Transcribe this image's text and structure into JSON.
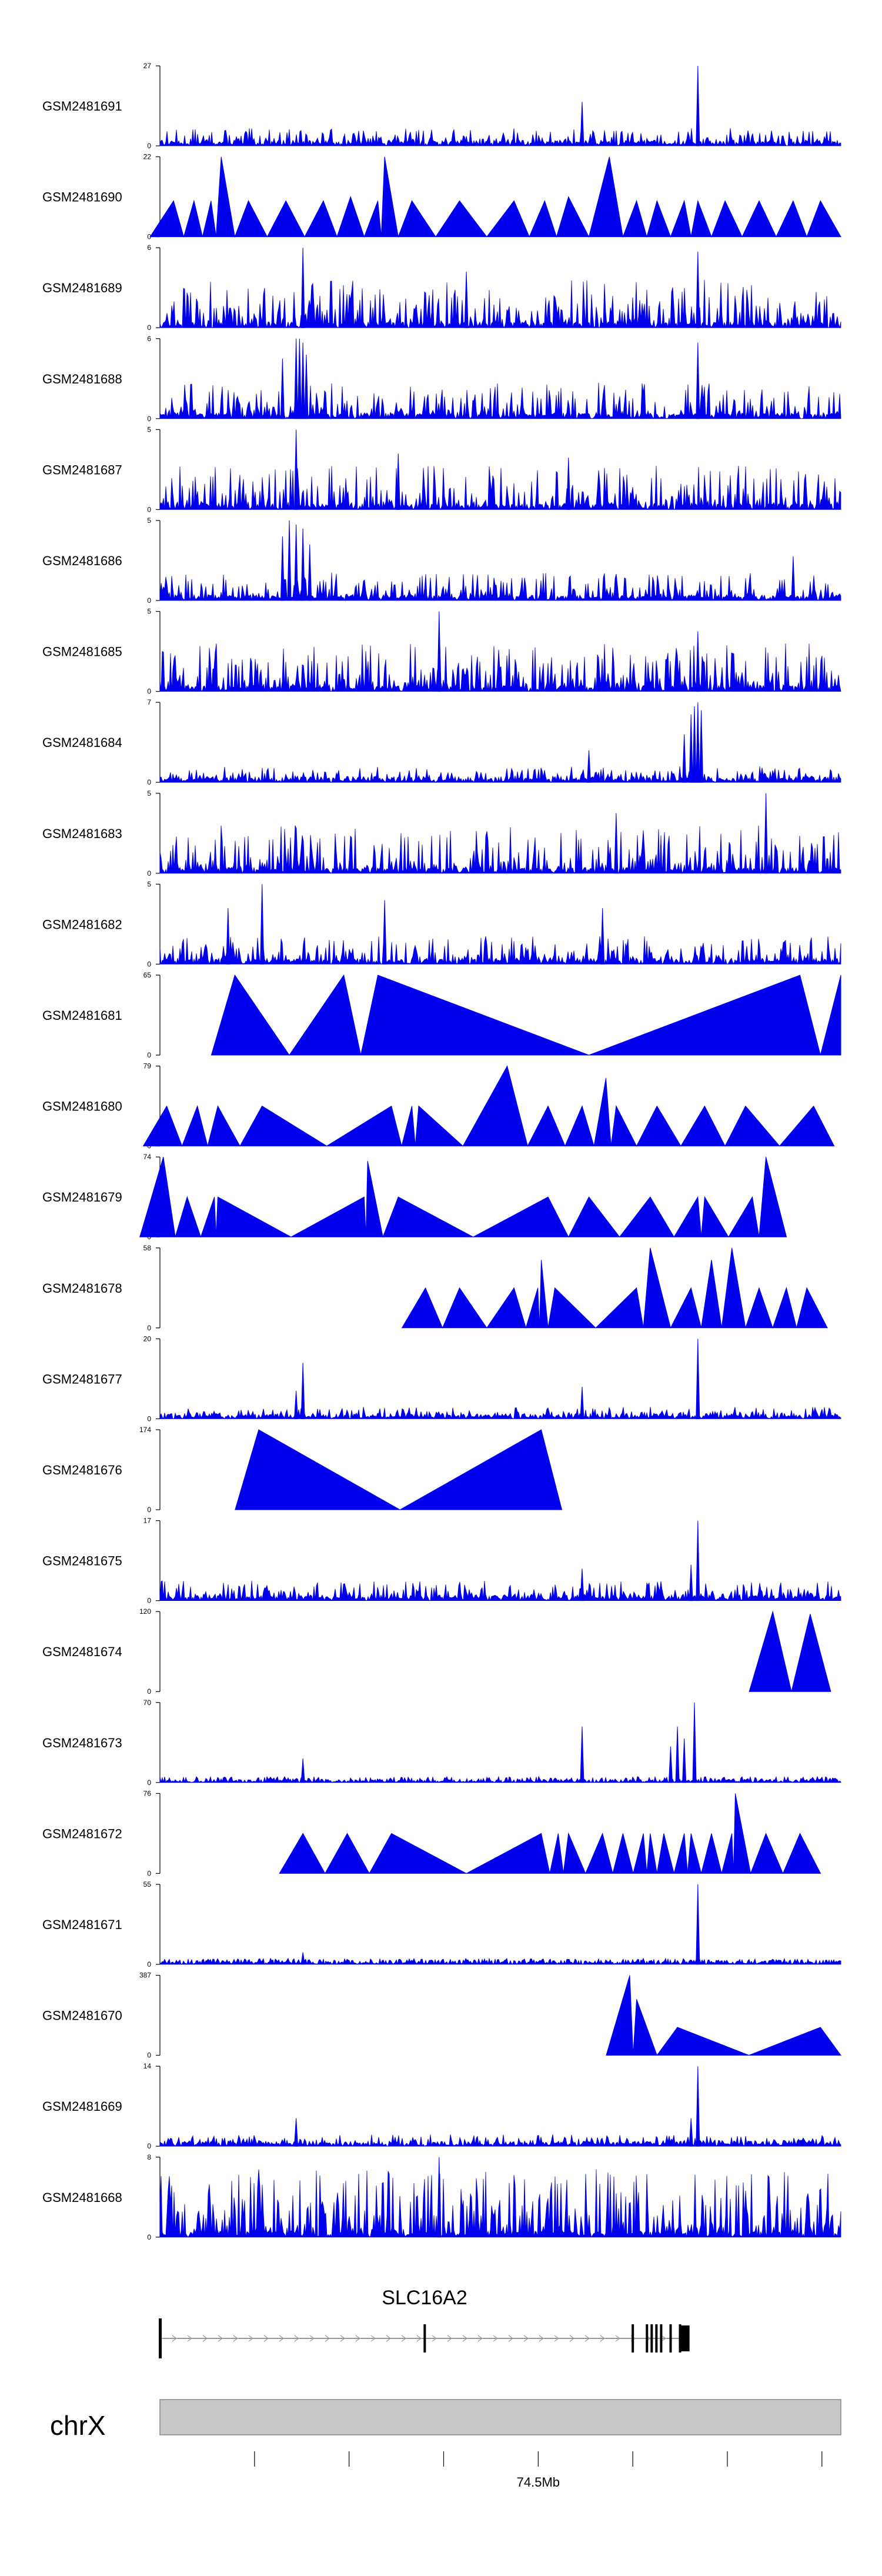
{
  "chart_data": {
    "type": "area",
    "title": "",
    "color": "#0000ee",
    "x_range": [
      74.1,
      74.82
    ],
    "tracks": [
      {
        "name": "GSM2481691",
        "ymax": "27",
        "style": "dense",
        "peak_level": 0.22,
        "spikes": [
          [
            0.62,
            0.55
          ],
          [
            0.79,
            1.0
          ],
          [
            0.27,
            0.12
          ],
          [
            0.45,
            0.12
          ]
        ]
      },
      {
        "name": "GSM2481690",
        "ymax": "22",
        "style": "triangles",
        "peaks": [
          [
            0.02,
            0.45
          ],
          [
            0.05,
            0.45
          ],
          [
            0.075,
            0.45
          ],
          [
            0.09,
            1.0
          ],
          [
            0.13,
            0.45
          ],
          [
            0.185,
            0.45
          ],
          [
            0.24,
            0.45
          ],
          [
            0.28,
            0.5
          ],
          [
            0.32,
            0.45
          ],
          [
            0.33,
            1.0
          ],
          [
            0.37,
            0.45
          ],
          [
            0.44,
            0.45
          ],
          [
            0.52,
            0.45
          ],
          [
            0.565,
            0.45
          ],
          [
            0.6,
            0.5
          ],
          [
            0.66,
            1.0
          ],
          [
            0.7,
            0.45
          ],
          [
            0.73,
            0.45
          ],
          [
            0.77,
            0.45
          ],
          [
            0.79,
            0.45
          ],
          [
            0.83,
            0.45
          ],
          [
            0.88,
            0.45
          ],
          [
            0.93,
            0.45
          ],
          [
            0.97,
            0.45
          ]
        ]
      },
      {
        "name": "GSM2481689",
        "ymax": "6",
        "style": "dense",
        "peak_level": 0.6,
        "spikes": [
          [
            0.21,
            1.0
          ],
          [
            0.79,
            0.95
          ],
          [
            0.45,
            0.7
          ]
        ]
      },
      {
        "name": "GSM2481688",
        "ymax": "6",
        "style": "dense",
        "peak_level": 0.45,
        "spikes": [
          [
            0.2,
            1.0
          ],
          [
            0.205,
            1.0
          ],
          [
            0.21,
            0.95
          ],
          [
            0.79,
            0.95
          ],
          [
            0.18,
            0.75
          ],
          [
            0.215,
            0.8
          ]
        ]
      },
      {
        "name": "GSM2481687",
        "ymax": "5",
        "style": "dense",
        "peak_level": 0.55,
        "spikes": [
          [
            0.2,
            1.0
          ],
          [
            0.35,
            0.7
          ],
          [
            0.6,
            0.65
          ]
        ]
      },
      {
        "name": "GSM2481686",
        "ymax": "5",
        "style": "dense",
        "peak_level": 0.35,
        "spikes": [
          [
            0.19,
            1.0
          ],
          [
            0.2,
            0.95
          ],
          [
            0.21,
            0.9
          ],
          [
            0.18,
            0.8
          ],
          [
            0.22,
            0.7
          ],
          [
            0.93,
            0.55
          ]
        ]
      },
      {
        "name": "GSM2481685",
        "ymax": "5",
        "style": "dense",
        "peak_level": 0.6,
        "spikes": [
          [
            0.41,
            1.0
          ],
          [
            0.79,
            0.75
          ]
        ]
      },
      {
        "name": "GSM2481684",
        "ymax": "7",
        "style": "dense",
        "peak_level": 0.2,
        "spikes": [
          [
            0.78,
            0.85
          ],
          [
            0.785,
            0.95
          ],
          [
            0.79,
            1.0
          ],
          [
            0.795,
            0.9
          ],
          [
            0.77,
            0.6
          ],
          [
            0.63,
            0.4
          ]
        ]
      },
      {
        "name": "GSM2481683",
        "ymax": "5",
        "style": "dense",
        "peak_level": 0.6,
        "spikes": [
          [
            0.89,
            1.0
          ],
          [
            0.67,
            0.75
          ]
        ]
      },
      {
        "name": "GSM2481682",
        "ymax": "5",
        "style": "dense",
        "peak_level": 0.35,
        "spikes": [
          [
            0.15,
            1.0
          ],
          [
            0.33,
            0.8
          ],
          [
            0.1,
            0.7
          ],
          [
            0.65,
            0.7
          ]
        ]
      },
      {
        "name": "GSM2481681",
        "ymax": "65",
        "style": "triangles",
        "peaks": [
          [
            0.11,
            1.0
          ],
          [
            0.27,
            1.0
          ],
          [
            0.32,
            1.0
          ],
          [
            0.94,
            1.0
          ],
          [
            1.0,
            1.0
          ]
        ]
      },
      {
        "name": "GSM2481680",
        "ymax": "79",
        "style": "triangles",
        "peaks": [
          [
            0.01,
            0.5
          ],
          [
            0.055,
            0.5
          ],
          [
            0.085,
            0.5
          ],
          [
            0.15,
            0.5
          ],
          [
            0.34,
            0.5
          ],
          [
            0.37,
            0.5
          ],
          [
            0.38,
            0.5
          ],
          [
            0.51,
            1.0
          ],
          [
            0.57,
            0.5
          ],
          [
            0.62,
            0.5
          ],
          [
            0.655,
            0.85
          ],
          [
            0.67,
            0.5
          ],
          [
            0.73,
            0.5
          ],
          [
            0.8,
            0.5
          ],
          [
            0.86,
            0.5
          ],
          [
            0.96,
            0.5
          ]
        ]
      },
      {
        "name": "GSM2481679",
        "ymax": "74",
        "style": "triangles",
        "peaks": [
          [
            0.005,
            1.0
          ],
          [
            0.04,
            0.5
          ],
          [
            0.08,
            0.5
          ],
          [
            0.085,
            0.5
          ],
          [
            0.3,
            0.5
          ],
          [
            0.305,
            0.95
          ],
          [
            0.35,
            0.5
          ],
          [
            0.57,
            0.5
          ],
          [
            0.63,
            0.5
          ],
          [
            0.72,
            0.5
          ],
          [
            0.79,
            0.5
          ],
          [
            0.8,
            0.5
          ],
          [
            0.87,
            0.5
          ],
          [
            0.89,
            1.0
          ]
        ]
      },
      {
        "name": "GSM2481678",
        "ymax": "58",
        "style": "triangles",
        "peaks": [
          [
            0.39,
            0.5
          ],
          [
            0.44,
            0.5
          ],
          [
            0.52,
            0.5
          ],
          [
            0.555,
            0.5
          ],
          [
            0.56,
            0.85
          ],
          [
            0.58,
            0.5
          ],
          [
            0.7,
            0.5
          ],
          [
            0.72,
            1.0
          ],
          [
            0.78,
            0.5
          ],
          [
            0.81,
            0.85
          ],
          [
            0.84,
            1.0
          ],
          [
            0.88,
            0.5
          ],
          [
            0.92,
            0.5
          ],
          [
            0.95,
            0.5
          ]
        ]
      },
      {
        "name": "GSM2481677",
        "ymax": "20",
        "style": "dense",
        "peak_level": 0.15,
        "spikes": [
          [
            0.21,
            0.7
          ],
          [
            0.62,
            0.4
          ],
          [
            0.79,
            1.0
          ],
          [
            0.2,
            0.35
          ]
        ]
      },
      {
        "name": "GSM2481676",
        "ymax": "174",
        "style": "triangles",
        "peaks": [
          [
            0.145,
            1.0
          ],
          [
            0.56,
            1.0
          ]
        ]
      },
      {
        "name": "GSM2481675",
        "ymax": "17",
        "style": "dense",
        "peak_level": 0.25,
        "spikes": [
          [
            0.79,
            1.0
          ],
          [
            0.62,
            0.4
          ],
          [
            0.78,
            0.45
          ]
        ]
      },
      {
        "name": "GSM2481674",
        "ymax": "120",
        "style": "triangles",
        "peaks": [
          [
            0.9,
            1.0
          ],
          [
            0.955,
            0.97
          ]
        ]
      },
      {
        "name": "GSM2481673",
        "ymax": "70",
        "style": "dense",
        "peak_level": 0.05,
        "spikes": [
          [
            0.21,
            0.3
          ],
          [
            0.62,
            0.7
          ],
          [
            0.76,
            0.7
          ],
          [
            0.785,
            1.0
          ],
          [
            0.75,
            0.45
          ],
          [
            0.77,
            0.55
          ]
        ]
      },
      {
        "name": "GSM2481672",
        "ymax": "76",
        "style": "triangles",
        "peaks": [
          [
            0.21,
            0.5
          ],
          [
            0.275,
            0.5
          ],
          [
            0.34,
            0.5
          ],
          [
            0.56,
            0.5
          ],
          [
            0.585,
            0.5
          ],
          [
            0.6,
            0.5
          ],
          [
            0.65,
            0.5
          ],
          [
            0.68,
            0.5
          ],
          [
            0.71,
            0.5
          ],
          [
            0.72,
            0.5
          ],
          [
            0.74,
            0.5
          ],
          [
            0.77,
            0.5
          ],
          [
            0.78,
            0.5
          ],
          [
            0.81,
            0.5
          ],
          [
            0.84,
            0.5
          ],
          [
            0.845,
            1.0
          ],
          [
            0.89,
            0.5
          ],
          [
            0.94,
            0.5
          ]
        ]
      },
      {
        "name": "GSM2481671",
        "ymax": "55",
        "style": "dense",
        "peak_level": 0.07,
        "spikes": [
          [
            0.79,
            1.0
          ],
          [
            0.21,
            0.15
          ]
        ]
      },
      {
        "name": "GSM2481670",
        "ymax": "387",
        "style": "triangles",
        "peaks": [
          [
            0.69,
            1.0
          ],
          [
            0.7,
            0.7
          ],
          [
            0.76,
            0.35
          ],
          [
            0.97,
            0.35
          ]
        ]
      },
      {
        "name": "GSM2481669",
        "ymax": "14",
        "style": "dense",
        "peak_level": 0.15,
        "spikes": [
          [
            0.79,
            1.0
          ],
          [
            0.2,
            0.35
          ],
          [
            0.78,
            0.35
          ]
        ]
      },
      {
        "name": "GSM2481668",
        "ymax": "8",
        "style": "dense",
        "peak_level": 0.85,
        "spikes": [
          [
            0.41,
            1.0
          ]
        ]
      }
    ],
    "gene": {
      "name": "SLC16A2",
      "start": 74.1,
      "end": 74.66,
      "exons": [
        74.1,
        74.38,
        74.6,
        74.615,
        74.62,
        74.625,
        74.63,
        74.64,
        74.65,
        74.66
      ]
    },
    "chromosome": "chrX",
    "axis": {
      "ticks": [
        74.2,
        74.3,
        74.4,
        74.5,
        74.6,
        74.7,
        74.8
      ],
      "labels": {
        "74.5": "74.5Mb"
      }
    }
  }
}
